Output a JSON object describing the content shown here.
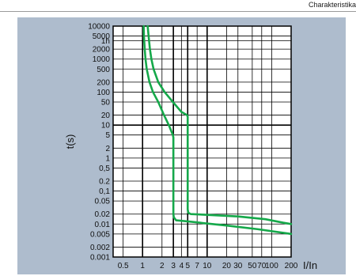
{
  "header": {
    "text": "Charakteristika"
  },
  "colors": {
    "panel": "#aebccd",
    "plot_bg": "#ffffff",
    "grid": "#000000",
    "curve": "#15a84a"
  },
  "chart_data": {
    "type": "line",
    "xlabel": "I/In",
    "ylabel": "t(s)",
    "xscale": "log",
    "yscale": "log",
    "xlim": [
      0.35,
      200
    ],
    "ylim": [
      0.001,
      10000
    ],
    "grid": true,
    "x_ticks": [
      {
        "value": 0.5,
        "label": "0.5"
      },
      {
        "value": 1,
        "label": "1"
      },
      {
        "value": 2,
        "label": "2"
      },
      {
        "value": 3,
        "label": "3"
      },
      {
        "value": 4,
        "label": "4"
      },
      {
        "value": 5,
        "label": "5"
      },
      {
        "value": 7,
        "label": "7"
      },
      {
        "value": 10,
        "label": "10"
      },
      {
        "value": 20,
        "label": "20"
      },
      {
        "value": 30,
        "label": "30"
      },
      {
        "value": 50,
        "label": "50"
      },
      {
        "value": 70,
        "label": "70"
      },
      {
        "value": 100,
        "label": "100"
      },
      {
        "value": 200,
        "label": "200"
      }
    ],
    "y_ticks": [
      {
        "value": 10000,
        "label": "10000"
      },
      {
        "value": 5000,
        "label": "5000"
      },
      {
        "value": 3600,
        "label": "1h"
      },
      {
        "value": 2000,
        "label": "2000"
      },
      {
        "value": 1000,
        "label": "1000"
      },
      {
        "value": 500,
        "label": "500"
      },
      {
        "value": 200,
        "label": "200"
      },
      {
        "value": 100,
        "label": "100"
      },
      {
        "value": 50,
        "label": "50"
      },
      {
        "value": 20,
        "label": "20"
      },
      {
        "value": 10,
        "label": "10"
      },
      {
        "value": 5,
        "label": "5"
      },
      {
        "value": 2,
        "label": "2"
      },
      {
        "value": 1,
        "label": "1"
      },
      {
        "value": 0.5,
        "label": "0,5"
      },
      {
        "value": 0.2,
        "label": "0.2"
      },
      {
        "value": 0.1,
        "label": "0,1"
      },
      {
        "value": 0.05,
        "label": "0.05"
      },
      {
        "value": 0.02,
        "label": "0.02"
      },
      {
        "value": 0.01,
        "label": "0.01"
      },
      {
        "value": 0.005,
        "label": "0.005"
      },
      {
        "value": 0.002,
        "label": "0.002"
      },
      {
        "value": 0.001,
        "label": "0.001"
      }
    ],
    "heavy_grid": {
      "x": [
        1,
        3,
        5,
        10
      ],
      "y": [
        10
      ]
    },
    "series": [
      {
        "points": [
          [
            1.04,
            10000
          ],
          [
            1.05,
            5000
          ],
          [
            1.08,
            2000
          ],
          [
            1.11,
            1000
          ],
          [
            1.16,
            500
          ],
          [
            1.28,
            200
          ],
          [
            1.45,
            100
          ],
          [
            1.75,
            50
          ],
          [
            2.15,
            20
          ],
          [
            2.55,
            10
          ],
          [
            2.95,
            5
          ],
          [
            3.0,
            4.2
          ],
          [
            3.0,
            0.02
          ],
          [
            3.05,
            0.016
          ],
          [
            3.3,
            0.013
          ],
          [
            5,
            0.012
          ],
          [
            20,
            0.009
          ],
          [
            60,
            0.007
          ],
          [
            200,
            0.005
          ]
        ]
      },
      {
        "points": [
          [
            1.2,
            10000
          ],
          [
            1.24,
            5000
          ],
          [
            1.3,
            2000
          ],
          [
            1.37,
            1000
          ],
          [
            1.48,
            500
          ],
          [
            1.75,
            200
          ],
          [
            2.2,
            100
          ],
          [
            2.95,
            50
          ],
          [
            4.0,
            25
          ],
          [
            4.9,
            20
          ],
          [
            5.0,
            18
          ],
          [
            5.0,
            0.028
          ],
          [
            5.1,
            0.022
          ],
          [
            5.6,
            0.02
          ],
          [
            10,
            0.019
          ],
          [
            30,
            0.017
          ],
          [
            80,
            0.014
          ],
          [
            150,
            0.011
          ],
          [
            200,
            0.01
          ]
        ]
      }
    ]
  }
}
